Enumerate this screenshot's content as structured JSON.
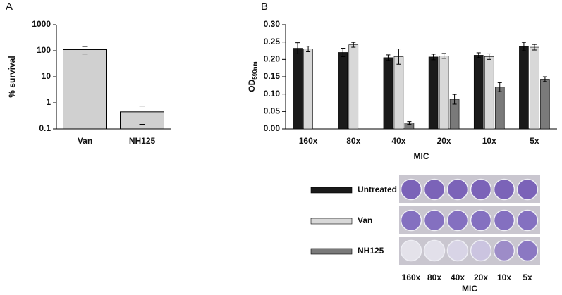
{
  "chart_data": [
    {
      "type": "bar",
      "panel": "A",
      "ylabel": "% survival",
      "log": true,
      "categories": [
        "Van",
        "NH125"
      ],
      "values": [
        110,
        0.45
      ],
      "errors": [
        35,
        0.3
      ],
      "color": "#d0d0d0",
      "ylim": [
        0.1,
        1000
      ],
      "yticks": [
        0.1,
        1,
        10,
        100,
        1000
      ]
    },
    {
      "type": "grouped-bar",
      "panel": "B",
      "ylabel": "OD",
      "ylabel_sub": "590nm",
      "xlabel": "MIC",
      "categories": [
        "160x",
        "80x",
        "40x",
        "20x",
        "10x",
        "5x"
      ],
      "series": [
        {
          "name": "Untreated",
          "color": "#1a1a1a",
          "values": [
            0.232,
            0.22,
            0.205,
            0.207,
            0.212,
            0.237
          ],
          "errors": [
            0.016,
            0.012,
            0.008,
            0.008,
            0.007,
            0.012
          ]
        },
        {
          "name": "Van",
          "color": "#d8d8d8",
          "values": [
            0.23,
            0.242,
            0.208,
            0.21,
            0.208,
            0.235
          ],
          "errors": [
            0.008,
            0.007,
            0.022,
            0.007,
            0.008,
            0.008
          ]
        },
        {
          "name": "NH125",
          "color": "#7a7a7a",
          "values": [
            0,
            0,
            0.017,
            0.085,
            0.12,
            0.143
          ],
          "errors": [
            0,
            0,
            0.004,
            0.014,
            0.013,
            0.007
          ]
        }
      ],
      "ylim": [
        0,
        0.3
      ],
      "yticks": [
        {
          "value": 0,
          "label": "0.00"
        },
        {
          "value": 0.05,
          "label": "0.05"
        },
        {
          "value": 0.1,
          "label": "0.10"
        },
        {
          "value": 0.15,
          "label": "0.15"
        },
        {
          "value": 0.2,
          "label": "0.20"
        },
        {
          "value": 0.25,
          "label": "0.25"
        },
        {
          "value": 0.3,
          "label": "0.30"
        }
      ]
    }
  ],
  "plate": {
    "columns": [
      "160x",
      "80x",
      "40x",
      "20x",
      "10x",
      "5x"
    ],
    "xlabel": "MIC"
  }
}
